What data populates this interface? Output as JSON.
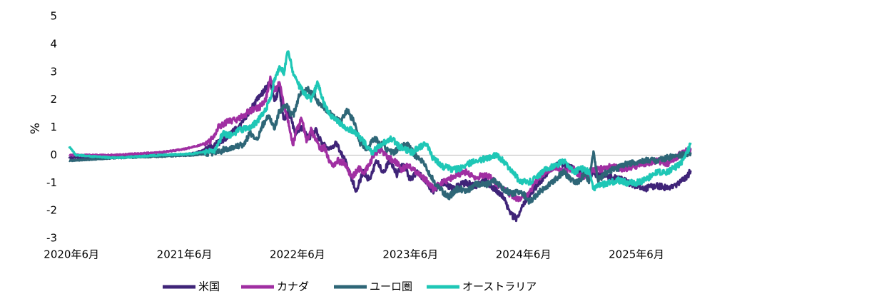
{
  "chart_data": {
    "type": "line",
    "title": "",
    "xlabel": "",
    "ylabel": "%",
    "ylim": [
      -3,
      5
    ],
    "yticks": [
      "5",
      "4",
      "3",
      "2",
      "1",
      "0",
      "-1",
      "-2",
      "-3"
    ],
    "x_ticks": [
      "2020年6月",
      "2021年6月",
      "2022年6月",
      "2023年6月",
      "2024年6月",
      "2025年6月"
    ],
    "x_range": [
      2020.4,
      2025.9
    ],
    "zero_line": true,
    "legend_position": "bottom",
    "series": [
      {
        "name": "米国",
        "color": "#3f2478",
        "points": [
          [
            2020.4,
            -0.1
          ],
          [
            2020.8,
            -0.05
          ],
          [
            2021.2,
            0.0
          ],
          [
            2021.45,
            0.0
          ],
          [
            2021.6,
            0.2
          ],
          [
            2021.75,
            0.5
          ],
          [
            2021.9,
            1.0
          ],
          [
            2022.0,
            1.6
          ],
          [
            2022.1,
            2.2
          ],
          [
            2022.18,
            2.6
          ],
          [
            2022.22,
            2.0
          ],
          [
            2022.26,
            2.4
          ],
          [
            2022.3,
            1.2
          ],
          [
            2022.34,
            1.6
          ],
          [
            2022.4,
            0.8
          ],
          [
            2022.46,
            1.0
          ],
          [
            2022.52,
            0.6
          ],
          [
            2022.58,
            0.9
          ],
          [
            2022.64,
            0.4
          ],
          [
            2022.7,
            0.2
          ],
          [
            2022.76,
            0.4
          ],
          [
            2022.82,
            0.0
          ],
          [
            2022.88,
            -0.6
          ],
          [
            2022.94,
            -1.3
          ],
          [
            2023.0,
            -0.6
          ],
          [
            2023.06,
            -0.9
          ],
          [
            2023.12,
            -0.2
          ],
          [
            2023.18,
            -0.6
          ],
          [
            2023.24,
            -0.2
          ],
          [
            2023.3,
            -0.7
          ],
          [
            2023.36,
            -0.3
          ],
          [
            2023.42,
            -0.9
          ],
          [
            2023.48,
            -0.6
          ],
          [
            2023.55,
            -0.9
          ],
          [
            2023.62,
            -1.3
          ],
          [
            2023.7,
            -1.0
          ],
          [
            2023.8,
            -1.2
          ],
          [
            2023.9,
            -1.0
          ],
          [
            2024.0,
            -1.1
          ],
          [
            2024.08,
            -0.9
          ],
          [
            2024.16,
            -1.2
          ],
          [
            2024.24,
            -1.5
          ],
          [
            2024.3,
            -2.1
          ],
          [
            2024.36,
            -2.3
          ],
          [
            2024.42,
            -1.8
          ],
          [
            2024.5,
            -1.3
          ],
          [
            2024.58,
            -0.9
          ],
          [
            2024.66,
            -0.5
          ],
          [
            2024.74,
            -0.3
          ],
          [
            2024.82,
            -0.4
          ],
          [
            2024.9,
            -0.6
          ],
          [
            2025.0,
            -0.7
          ],
          [
            2025.1,
            -0.7
          ],
          [
            2025.2,
            -0.8
          ],
          [
            2025.3,
            -0.9
          ],
          [
            2025.4,
            -1.1
          ],
          [
            2025.5,
            -1.2
          ],
          [
            2025.6,
            -1.1
          ],
          [
            2025.7,
            -1.2
          ],
          [
            2025.8,
            -1.0
          ],
          [
            2025.87,
            -0.8
          ],
          [
            2025.9,
            -0.55
          ]
        ]
      },
      {
        "name": "カナダ",
        "color": "#a02fa2",
        "points": [
          [
            2020.4,
            0.0
          ],
          [
            2020.8,
            0.0
          ],
          [
            2021.2,
            0.1
          ],
          [
            2021.4,
            0.2
          ],
          [
            2021.55,
            0.35
          ],
          [
            2021.65,
            0.5
          ],
          [
            2021.72,
            1.0
          ],
          [
            2021.8,
            1.2
          ],
          [
            2021.9,
            1.3
          ],
          [
            2022.0,
            1.6
          ],
          [
            2022.08,
            1.7
          ],
          [
            2022.14,
            2.0
          ],
          [
            2022.18,
            2.8
          ],
          [
            2022.22,
            2.3
          ],
          [
            2022.26,
            2.6
          ],
          [
            2022.3,
            1.8
          ],
          [
            2022.34,
            1.2
          ],
          [
            2022.38,
            0.4
          ],
          [
            2022.42,
            1.0
          ],
          [
            2022.46,
            1.3
          ],
          [
            2022.5,
            0.5
          ],
          [
            2022.54,
            0.9
          ],
          [
            2022.58,
            0.6
          ],
          [
            2022.62,
            0.2
          ],
          [
            2022.66,
            0.3
          ],
          [
            2022.72,
            -0.4
          ],
          [
            2022.78,
            -0.2
          ],
          [
            2022.84,
            -0.3
          ],
          [
            2022.9,
            -0.8
          ],
          [
            2022.96,
            -0.5
          ],
          [
            2023.02,
            -0.6
          ],
          [
            2023.1,
            0.0
          ],
          [
            2023.16,
            0.2
          ],
          [
            2023.22,
            -0.1
          ],
          [
            2023.28,
            -0.2
          ],
          [
            2023.34,
            -0.5
          ],
          [
            2023.4,
            -0.4
          ],
          [
            2023.5,
            -0.7
          ],
          [
            2023.56,
            -0.9
          ],
          [
            2023.62,
            -1.2
          ],
          [
            2023.7,
            -1.0
          ],
          [
            2023.8,
            -0.8
          ],
          [
            2023.9,
            -0.6
          ],
          [
            2024.0,
            -0.8
          ],
          [
            2024.1,
            -0.7
          ],
          [
            2024.2,
            -1.1
          ],
          [
            2024.3,
            -1.4
          ],
          [
            2024.38,
            -1.6
          ],
          [
            2024.46,
            -1.4
          ],
          [
            2024.54,
            -0.9
          ],
          [
            2024.62,
            -0.6
          ],
          [
            2024.7,
            -0.4
          ],
          [
            2024.78,
            -0.6
          ],
          [
            2024.86,
            -0.5
          ],
          [
            2024.94,
            -0.8
          ],
          [
            2025.02,
            -0.6
          ],
          [
            2025.1,
            -0.5
          ],
          [
            2025.2,
            -0.4
          ],
          [
            2025.3,
            -0.5
          ],
          [
            2025.4,
            -0.4
          ],
          [
            2025.5,
            -0.3
          ],
          [
            2025.6,
            -0.2
          ],
          [
            2025.7,
            -0.3
          ],
          [
            2025.8,
            0.0
          ],
          [
            2025.88,
            0.2
          ],
          [
            2025.9,
            0.25
          ]
        ]
      },
      {
        "name": "ユーロ圏",
        "color": "#2e6677",
        "points": [
          [
            2020.4,
            -0.2
          ],
          [
            2020.8,
            -0.1
          ],
          [
            2021.2,
            -0.05
          ],
          [
            2021.5,
            0.0
          ],
          [
            2021.7,
            0.1
          ],
          [
            2021.85,
            0.3
          ],
          [
            2021.95,
            0.4
          ],
          [
            2022.0,
            0.8
          ],
          [
            2022.06,
            0.5
          ],
          [
            2022.1,
            1.0
          ],
          [
            2022.16,
            1.4
          ],
          [
            2022.22,
            1.0
          ],
          [
            2022.26,
            1.6
          ],
          [
            2022.32,
            1.8
          ],
          [
            2022.38,
            1.4
          ],
          [
            2022.44,
            2.2
          ],
          [
            2022.5,
            2.4
          ],
          [
            2022.56,
            2.2
          ],
          [
            2022.62,
            1.8
          ],
          [
            2022.68,
            1.6
          ],
          [
            2022.74,
            1.4
          ],
          [
            2022.8,
            1.2
          ],
          [
            2022.86,
            1.6
          ],
          [
            2022.92,
            1.2
          ],
          [
            2022.98,
            0.4
          ],
          [
            2023.04,
            0.2
          ],
          [
            2023.1,
            0.6
          ],
          [
            2023.16,
            0.4
          ],
          [
            2023.22,
            0.2
          ],
          [
            2023.28,
            0.1
          ],
          [
            2023.34,
            0.3
          ],
          [
            2023.4,
            0.4
          ],
          [
            2023.46,
            0.0
          ],
          [
            2023.52,
            -0.2
          ],
          [
            2023.58,
            -0.6
          ],
          [
            2023.64,
            -1.0
          ],
          [
            2023.7,
            -1.3
          ],
          [
            2023.76,
            -1.5
          ],
          [
            2023.84,
            -1.2
          ],
          [
            2023.92,
            -1.3
          ],
          [
            2024.0,
            -1.0
          ],
          [
            2024.08,
            -1.1
          ],
          [
            2024.16,
            -0.9
          ],
          [
            2024.24,
            -1.2
          ],
          [
            2024.32,
            -1.4
          ],
          [
            2024.4,
            -1.3
          ],
          [
            2024.48,
            -1.7
          ],
          [
            2024.54,
            -1.4
          ],
          [
            2024.6,
            -1.2
          ],
          [
            2024.66,
            -1.0
          ],
          [
            2024.72,
            -0.8
          ],
          [
            2024.78,
            -0.6
          ],
          [
            2024.84,
            -0.9
          ],
          [
            2024.9,
            -1.0
          ],
          [
            2024.96,
            -0.7
          ],
          [
            2025.0,
            -0.9
          ],
          [
            2025.04,
            0.1
          ],
          [
            2025.08,
            -0.9
          ],
          [
            2025.16,
            -0.6
          ],
          [
            2025.24,
            -0.5
          ],
          [
            2025.32,
            -0.3
          ],
          [
            2025.4,
            -0.3
          ],
          [
            2025.5,
            -0.2
          ],
          [
            2025.6,
            -0.2
          ],
          [
            2025.7,
            -0.1
          ],
          [
            2025.8,
            0.0
          ],
          [
            2025.88,
            0.05
          ],
          [
            2025.9,
            0.1
          ]
        ]
      },
      {
        "name": "オーストラリア",
        "color": "#1fc7b6",
        "points": [
          [
            2020.4,
            0.3
          ],
          [
            2020.46,
            0.0
          ],
          [
            2020.8,
            -0.1
          ],
          [
            2021.2,
            0.0
          ],
          [
            2021.5,
            0.05
          ],
          [
            2021.7,
            0.2
          ],
          [
            2021.76,
            0.8
          ],
          [
            2021.82,
            0.7
          ],
          [
            2021.9,
            0.9
          ],
          [
            2022.0,
            1.0
          ],
          [
            2022.06,
            1.2
          ],
          [
            2022.12,
            1.5
          ],
          [
            2022.18,
            2.0
          ],
          [
            2022.22,
            2.8
          ],
          [
            2022.26,
            3.1
          ],
          [
            2022.3,
            3.0
          ],
          [
            2022.34,
            3.8
          ],
          [
            2022.38,
            3.0
          ],
          [
            2022.42,
            2.6
          ],
          [
            2022.48,
            2.2
          ],
          [
            2022.54,
            2.0
          ],
          [
            2022.6,
            2.6
          ],
          [
            2022.66,
            1.8
          ],
          [
            2022.72,
            1.4
          ],
          [
            2022.78,
            1.2
          ],
          [
            2022.84,
            1.0
          ],
          [
            2022.9,
            0.9
          ],
          [
            2022.96,
            0.7
          ],
          [
            2023.02,
            0.4
          ],
          [
            2023.08,
            0.1
          ],
          [
            2023.14,
            0.3
          ],
          [
            2023.2,
            0.5
          ],
          [
            2023.26,
            0.6
          ],
          [
            2023.32,
            0.3
          ],
          [
            2023.38,
            0.2
          ],
          [
            2023.44,
            0.1
          ],
          [
            2023.5,
            0.3
          ],
          [
            2023.56,
            0.4
          ],
          [
            2023.62,
            -0.1
          ],
          [
            2023.7,
            -0.4
          ],
          [
            2023.78,
            -0.5
          ],
          [
            2023.86,
            -0.5
          ],
          [
            2023.94,
            -0.3
          ],
          [
            2024.02,
            -0.2
          ],
          [
            2024.1,
            -0.1
          ],
          [
            2024.18,
            0.0
          ],
          [
            2024.24,
            -0.2
          ],
          [
            2024.3,
            -0.5
          ],
          [
            2024.38,
            -0.9
          ],
          [
            2024.46,
            -1.0
          ],
          [
            2024.54,
            -0.8
          ],
          [
            2024.62,
            -0.5
          ],
          [
            2024.7,
            -0.4
          ],
          [
            2024.78,
            -0.2
          ],
          [
            2024.86,
            -0.6
          ],
          [
            2024.94,
            -0.5
          ],
          [
            2025.0,
            -0.6
          ],
          [
            2025.04,
            -1.2
          ],
          [
            2025.1,
            -1.1
          ],
          [
            2025.18,
            -1.0
          ],
          [
            2025.26,
            -0.9
          ],
          [
            2025.34,
            -1.0
          ],
          [
            2025.42,
            -1.0
          ],
          [
            2025.5,
            -0.9
          ],
          [
            2025.6,
            -0.6
          ],
          [
            2025.7,
            -0.6
          ],
          [
            2025.78,
            -0.4
          ],
          [
            2025.84,
            -0.2
          ],
          [
            2025.88,
            0.2
          ],
          [
            2025.9,
            0.45
          ]
        ]
      }
    ]
  }
}
